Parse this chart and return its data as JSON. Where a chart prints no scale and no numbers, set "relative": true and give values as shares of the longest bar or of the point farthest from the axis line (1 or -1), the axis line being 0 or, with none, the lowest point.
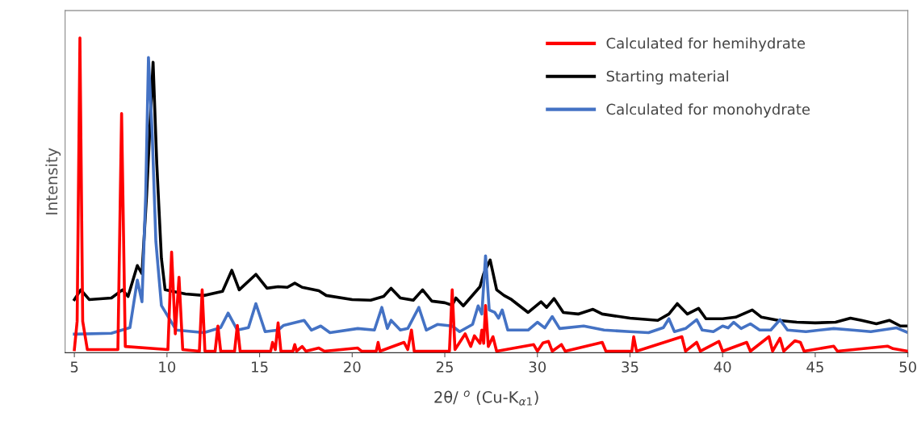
{
  "chart_data": {
    "type": "line",
    "relative": true,
    "xlabel": "2θ/ $^{o}$ (Cu-K$_{α1}$)",
    "ylabel": "Intensity",
    "xlim": [
      4.5,
      50
    ],
    "xticks": [
      5,
      10,
      15,
      20,
      25,
      30,
      35,
      40,
      45,
      50
    ],
    "grid": false,
    "legend": "top right",
    "marker": "none",
    "line_style": "solid",
    "series": [
      {
        "name": "Calculated for hemihydrate",
        "color": "#ff0000",
        "x": [
          5.0,
          5.15,
          5.3,
          5.45,
          5.7,
          7.35,
          7.55,
          7.75,
          10.05,
          10.25,
          10.45,
          10.65,
          10.85,
          11.75,
          11.9,
          12.05,
          12.6,
          12.75,
          12.9,
          13.65,
          13.8,
          13.95,
          15.6,
          15.7,
          15.85,
          16.0,
          16.15,
          16.8,
          16.9,
          17.0,
          17.3,
          17.5,
          18.2,
          18.5,
          20.3,
          20.5,
          21.3,
          21.4,
          21.5,
          22.8,
          23.0,
          23.2,
          23.35,
          25.25,
          25.4,
          25.55,
          26.1,
          26.4,
          26.6,
          26.9,
          27.0,
          27.1,
          27.2,
          27.35,
          27.6,
          27.8,
          29.8,
          30.0,
          30.3,
          30.6,
          30.8,
          31.3,
          31.5,
          33.5,
          33.7,
          35.1,
          35.2,
          35.35,
          37.8,
          38.0,
          38.6,
          38.8,
          39.8,
          40.0,
          41.3,
          41.5,
          42.5,
          42.7,
          43.1,
          43.3,
          43.9,
          44.2,
          44.4,
          46.0,
          46.2,
          48.9,
          49.2,
          50.0
        ],
        "values": [
          0.01,
          0.1,
          1.0,
          0.1,
          0.01,
          0.01,
          0.76,
          0.02,
          0.01,
          0.32,
          0.06,
          0.24,
          0.01,
          0.005,
          0.2,
          0.005,
          0.005,
          0.085,
          0.005,
          0.005,
          0.087,
          0.005,
          0.005,
          0.033,
          0.01,
          0.095,
          0.005,
          0.005,
          0.026,
          0.005,
          0.02,
          0.005,
          0.015,
          0.005,
          0.015,
          0.005,
          0.005,
          0.033,
          0.005,
          0.033,
          0.01,
          0.072,
          0.005,
          0.005,
          0.2,
          0.01,
          0.06,
          0.02,
          0.054,
          0.03,
          0.072,
          0.03,
          0.15,
          0.02,
          0.051,
          0.005,
          0.026,
          0.005,
          0.031,
          0.036,
          0.005,
          0.026,
          0.005,
          0.033,
          0.005,
          0.005,
          0.051,
          0.005,
          0.051,
          0.005,
          0.033,
          0.005,
          0.036,
          0.005,
          0.033,
          0.005,
          0.051,
          0.005,
          0.046,
          0.005,
          0.038,
          0.033,
          0.005,
          0.021,
          0.005,
          0.021,
          0.013,
          0.005
        ]
      },
      {
        "name": "Starting material",
        "color": "#000000",
        "x": [
          5.0,
          5.35,
          5.8,
          7.0,
          7.6,
          7.9,
          8.4,
          8.65,
          8.9,
          9.25,
          9.45,
          9.7,
          9.9,
          10.3,
          11.0,
          12.0,
          13.0,
          13.5,
          13.9,
          14.8,
          15.4,
          16.0,
          16.5,
          16.9,
          17.3,
          18.2,
          18.6,
          20.0,
          21.0,
          21.7,
          22.1,
          22.6,
          23.3,
          23.8,
          24.3,
          25.0,
          25.4,
          25.6,
          26.0,
          26.9,
          27.1,
          27.45,
          27.8,
          28.2,
          28.6,
          29.5,
          30.2,
          30.5,
          30.9,
          31.4,
          32.2,
          33.0,
          33.5,
          35.0,
          36.5,
          37.1,
          37.55,
          38.1,
          38.7,
          39.1,
          40.0,
          40.7,
          41.6,
          42.1,
          43.0,
          44.0,
          45.0,
          46.1,
          46.9,
          47.5,
          48.3,
          49.0,
          49.6,
          50.0
        ],
        "values": [
          0.169,
          0.2,
          0.169,
          0.174,
          0.2,
          0.179,
          0.277,
          0.251,
          0.5,
          0.923,
          0.6,
          0.3,
          0.2,
          0.195,
          0.187,
          0.182,
          0.195,
          0.262,
          0.2,
          0.249,
          0.205,
          0.21,
          0.208,
          0.221,
          0.208,
          0.197,
          0.182,
          0.169,
          0.167,
          0.179,
          0.205,
          0.174,
          0.167,
          0.2,
          0.164,
          0.159,
          0.151,
          0.174,
          0.149,
          0.21,
          0.251,
          0.295,
          0.2,
          0.182,
          0.169,
          0.128,
          0.162,
          0.144,
          0.172,
          0.128,
          0.123,
          0.138,
          0.123,
          0.11,
          0.103,
          0.123,
          0.156,
          0.123,
          0.141,
          0.108,
          0.108,
          0.113,
          0.136,
          0.113,
          0.103,
          0.097,
          0.095,
          0.097,
          0.11,
          0.103,
          0.092,
          0.103,
          0.085,
          0.085
        ]
      },
      {
        "name": "Calculated for monohydrate",
        "color": "#4472c4",
        "x": [
          5.0,
          7.0,
          8.0,
          8.4,
          8.65,
          8.85,
          9.0,
          9.2,
          9.4,
          9.7,
          10.5,
          12.0,
          12.9,
          13.3,
          13.8,
          14.4,
          14.8,
          15.3,
          16.0,
          16.3,
          17.0,
          17.4,
          17.8,
          18.3,
          18.8,
          20.3,
          21.2,
          21.6,
          21.9,
          22.1,
          22.6,
          23.0,
          23.6,
          24.0,
          24.6,
          25.4,
          25.8,
          26.5,
          26.8,
          27.0,
          27.2,
          27.4,
          27.7,
          27.9,
          28.1,
          28.4,
          29.5,
          30.0,
          30.4,
          30.8,
          31.2,
          32.5,
          33.6,
          35.0,
          36.0,
          36.8,
          37.1,
          37.4,
          38.0,
          38.6,
          38.9,
          39.5,
          40.0,
          40.3,
          40.6,
          41.0,
          41.5,
          42.0,
          42.6,
          43.1,
          43.5,
          44.5,
          46.0,
          47.0,
          48.0,
          49.4,
          50.0
        ],
        "values": [
          0.059,
          0.062,
          0.08,
          0.231,
          0.162,
          0.5,
          0.938,
          0.7,
          0.354,
          0.15,
          0.072,
          0.064,
          0.08,
          0.126,
          0.072,
          0.08,
          0.156,
          0.067,
          0.072,
          0.087,
          0.097,
          0.103,
          0.072,
          0.085,
          0.064,
          0.077,
          0.072,
          0.144,
          0.077,
          0.103,
          0.072,
          0.077,
          0.144,
          0.072,
          0.09,
          0.085,
          0.067,
          0.09,
          0.149,
          0.123,
          0.308,
          0.136,
          0.128,
          0.11,
          0.136,
          0.072,
          0.072,
          0.097,
          0.079,
          0.115,
          0.077,
          0.085,
          0.072,
          0.067,
          0.064,
          0.08,
          0.108,
          0.067,
          0.077,
          0.105,
          0.072,
          0.067,
          0.085,
          0.079,
          0.097,
          0.077,
          0.092,
          0.072,
          0.072,
          0.105,
          0.072,
          0.067,
          0.077,
          0.072,
          0.067,
          0.079,
          0.064
        ]
      }
    ]
  }
}
